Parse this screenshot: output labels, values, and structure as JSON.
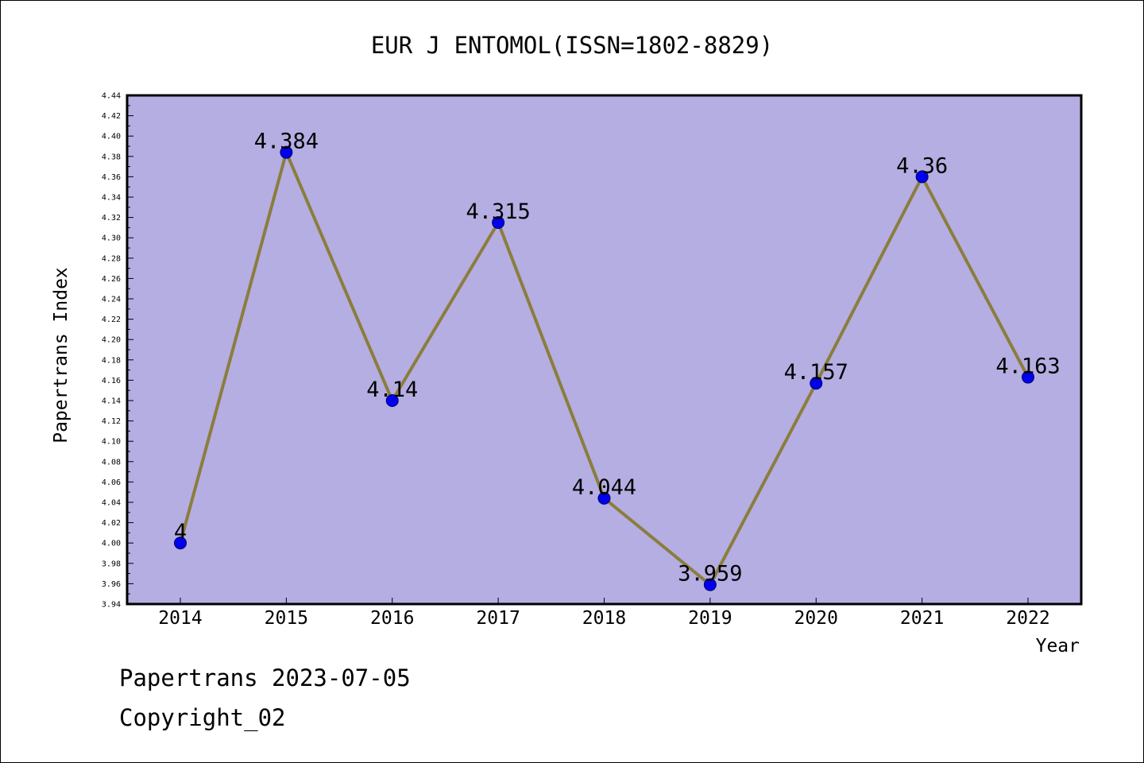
{
  "chart_data": {
    "type": "line",
    "title": "EUR J ENTOMOL(ISSN=1802-8829)",
    "xlabel": "Year",
    "ylabel": "Papertrans Index",
    "x": [
      "2014",
      "2015",
      "2016",
      "2017",
      "2018",
      "2019",
      "2020",
      "2021",
      "2022"
    ],
    "series": [
      {
        "values": [
          4,
          4.384,
          4.14,
          4.315,
          4.044,
          3.959,
          4.157,
          4.36,
          4.163
        ],
        "point_labels": [
          "4",
          "4.384",
          "4.14",
          "4.315",
          "4.044",
          "3.959",
          "4.157",
          "4.36",
          "4.163"
        ]
      }
    ],
    "ylim": [
      3.94,
      4.44
    ],
    "ytick_labels": [
      "3.94",
      "3.96",
      "3.98",
      "4.00",
      "4.02",
      "4.04",
      "4.06",
      "4.08",
      "4.10",
      "4.12",
      "4.14",
      "4.16",
      "4.18",
      "4.20",
      "4.22",
      "4.24",
      "4.26",
      "4.28",
      "4.30",
      "4.32",
      "4.34",
      "4.36",
      "4.38",
      "4.40",
      "4.42",
      "4.44"
    ],
    "grid": false,
    "legend": "none",
    "colors": {
      "plot_background": "#b4aee2",
      "line": "#8b7d3c",
      "marker": "#0000ee",
      "axis": "#000000"
    }
  },
  "footer": {
    "line1": "Papertrans 2023-07-05",
    "line2": "Copyright_02"
  }
}
